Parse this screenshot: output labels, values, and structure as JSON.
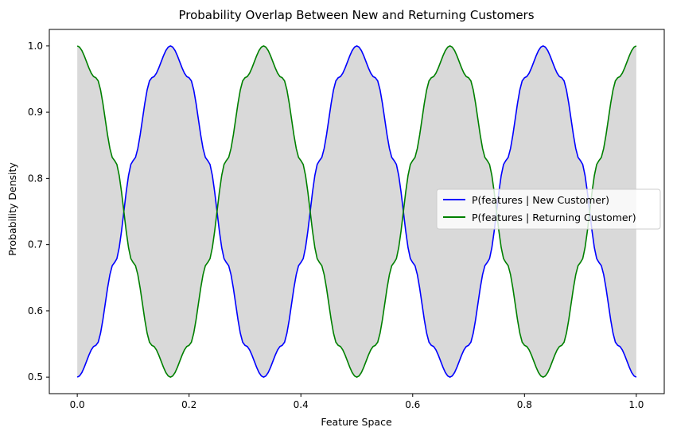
{
  "chart_data": {
    "type": "line",
    "title": "Probability Overlap Between New and Returning Customers",
    "xlabel": "Feature Space",
    "ylabel": "Probability Density",
    "xlim": [
      -0.05,
      1.05
    ],
    "ylim": [
      0.475,
      1.025
    ],
    "x_ticks": [
      0.0,
      0.2,
      0.4,
      0.6,
      0.8,
      1.0
    ],
    "x_tick_labels": [
      "0.0",
      "0.2",
      "0.4",
      "0.6",
      "0.8",
      "1.0"
    ],
    "y_ticks": [
      0.5,
      0.6,
      0.7,
      0.8,
      0.9,
      1.0
    ],
    "y_tick_labels": [
      "0.5",
      "0.6",
      "0.7",
      "0.8",
      "0.9",
      "1.0"
    ],
    "grid": false,
    "legend_placement": "center-right",
    "fill_between": {
      "color": "#808080",
      "opacity": 0.3
    },
    "x": [
      0.0,
      0.0333,
      0.0667,
      0.1,
      0.1333,
      0.1667,
      0.2,
      0.2333,
      0.2667,
      0.3,
      0.3333,
      0.3667,
      0.4,
      0.4333,
      0.4667,
      0.5,
      0.5333,
      0.5667,
      0.6,
      0.6333,
      0.6667,
      0.7,
      0.7333,
      0.7667,
      0.8,
      0.8333,
      0.8667,
      0.9,
      0.9333,
      0.9667,
      1.0
    ],
    "series": [
      {
        "name": "P(features | New Customer)",
        "color": "#0000ff",
        "values": [
          0.5,
          0.548,
          0.673,
          0.827,
          0.952,
          1.0,
          0.952,
          0.827,
          0.673,
          0.548,
          0.5,
          0.548,
          0.673,
          0.827,
          0.952,
          1.0,
          0.952,
          0.827,
          0.673,
          0.548,
          0.5,
          0.548,
          0.673,
          0.827,
          0.952,
          1.0,
          0.952,
          0.827,
          0.673,
          0.548,
          0.5
        ]
      },
      {
        "name": "P(features | Returning Customer)",
        "color": "#008000",
        "values": [
          1.0,
          0.952,
          0.827,
          0.673,
          0.548,
          0.5,
          0.548,
          0.673,
          0.827,
          0.952,
          1.0,
          0.952,
          0.827,
          0.673,
          0.548,
          0.5,
          0.548,
          0.673,
          0.827,
          0.952,
          1.0,
          0.952,
          0.827,
          0.673,
          0.548,
          0.5,
          0.548,
          0.673,
          0.827,
          0.952,
          1.0
        ]
      }
    ]
  }
}
